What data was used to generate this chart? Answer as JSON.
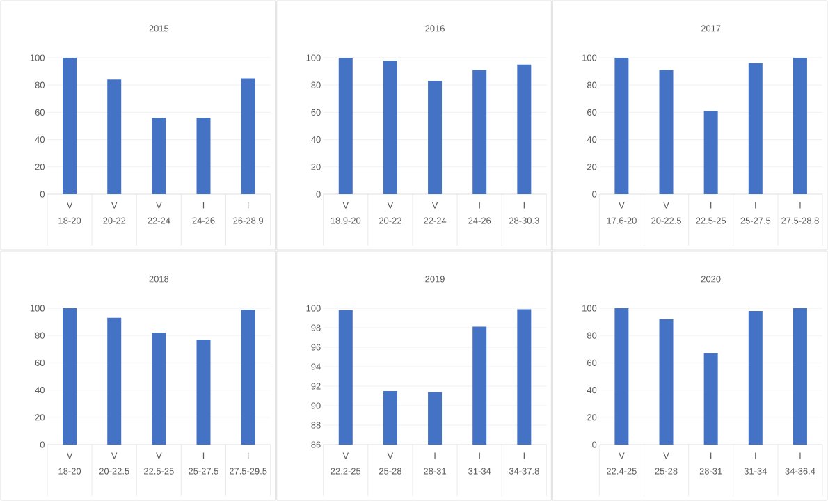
{
  "chart_data": [
    {
      "type": "bar",
      "title": "2015",
      "categories": [
        "18-20",
        "20-22",
        "22-24",
        "24-26",
        "26-28.9"
      ],
      "annotations": [
        "V",
        "V",
        "V",
        "I",
        "I"
      ],
      "values": [
        100,
        84,
        56,
        56,
        85
      ],
      "color": "#4472c4",
      "ylim": [
        0,
        100
      ],
      "yticks": [
        0,
        20,
        40,
        60,
        80,
        100
      ],
      "grid": "y"
    },
    {
      "type": "bar",
      "title": "2016",
      "categories": [
        "18.9-20",
        "20-22",
        "22-24",
        "24-26",
        "28-30.3"
      ],
      "annotations": [
        "V",
        "V",
        "V",
        "I",
        "I"
      ],
      "values": [
        100,
        98,
        83,
        91,
        95
      ],
      "color": "#4472c4",
      "ylim": [
        0,
        100
      ],
      "yticks": [
        0,
        20,
        40,
        60,
        80,
        100
      ],
      "grid": "y"
    },
    {
      "type": "bar",
      "title": "2017",
      "categories": [
        "17.6-20",
        "20-22.5",
        "22.5-25",
        "25-27.5",
        "27.5-28.8"
      ],
      "annotations": [
        "V",
        "V",
        "I",
        "I",
        "I"
      ],
      "values": [
        100,
        91,
        61,
        96,
        100
      ],
      "color": "#4472c4",
      "ylim": [
        0,
        100
      ],
      "yticks": [
        0,
        20,
        40,
        60,
        80,
        100
      ],
      "grid": "y"
    },
    {
      "type": "bar",
      "title": "2018",
      "categories": [
        "18-20",
        "20-22.5",
        "22.5-25",
        "25-27.5",
        "27.5-29.5"
      ],
      "annotations": [
        "V",
        "V",
        "V",
        "I",
        "I"
      ],
      "values": [
        100,
        93,
        82,
        77,
        99
      ],
      "color": "#4472c4",
      "ylim": [
        0,
        100
      ],
      "yticks": [
        0,
        20,
        40,
        60,
        80,
        100
      ],
      "grid": "y"
    },
    {
      "type": "bar",
      "title": "2019",
      "categories": [
        "22.2-25",
        "25-28",
        "28-31",
        "31-34",
        "34-37.8"
      ],
      "annotations": [
        "V",
        "V",
        "I",
        "I",
        "I"
      ],
      "values": [
        99.8,
        91.5,
        91.4,
        98.1,
        99.9
      ],
      "color": "#4472c4",
      "ylim": [
        86,
        100
      ],
      "yticks": [
        86,
        88,
        90,
        92,
        94,
        96,
        98,
        100
      ],
      "grid": "y"
    },
    {
      "type": "bar",
      "title": "2020",
      "categories": [
        "22.4-25",
        "25-28",
        "28-31",
        "31-34",
        "34-36.4"
      ],
      "annotations": [
        "V",
        "V",
        "I",
        "I",
        "I"
      ],
      "values": [
        100,
        92,
        67,
        98,
        100
      ],
      "color": "#4472c4",
      "ylim": [
        0,
        100
      ],
      "yticks": [
        0,
        20,
        40,
        60,
        80,
        100
      ],
      "grid": "y"
    }
  ]
}
